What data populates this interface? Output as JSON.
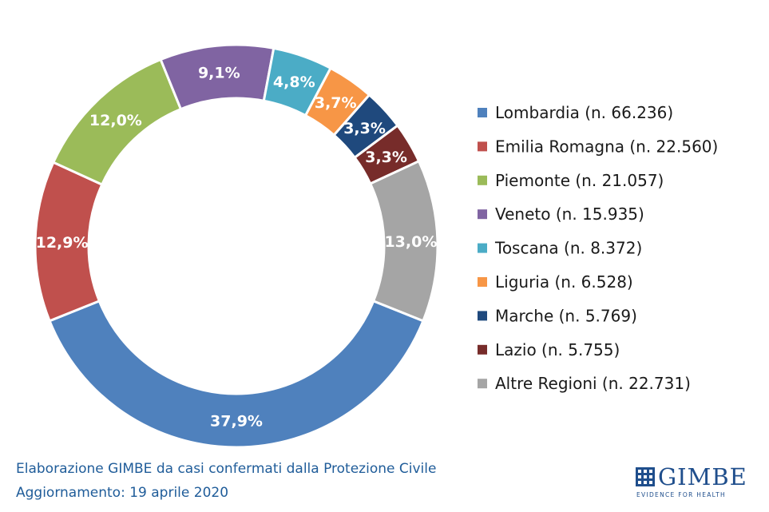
{
  "chart_data": {
    "type": "donut",
    "title": "",
    "slices": [
      {
        "label": "Lombardia (n. 66.236)",
        "value": 66236,
        "pct_label": "37,9%",
        "color": "#4f81bd"
      },
      {
        "label": "Emilia Romagna (n. 22.560)",
        "value": 22560,
        "pct_label": "12,9%",
        "color": "#c0504d"
      },
      {
        "label": "Piemonte (n. 21.057)",
        "value": 21057,
        "pct_label": "12,0%",
        "color": "#9bbb59"
      },
      {
        "label": "Veneto (n. 15.935)",
        "value": 15935,
        "pct_label": "9,1%",
        "color": "#8064a2"
      },
      {
        "label": "Toscana (n. 8.372)",
        "value": 8372,
        "pct_label": "4,8%",
        "color": "#4bacc6"
      },
      {
        "label": "Liguria (n. 6.528)",
        "value": 6528,
        "pct_label": "3,7%",
        "color": "#f79646"
      },
      {
        "label": "Marche (n. 5.769)",
        "value": 5769,
        "pct_label": "3,3%",
        "color": "#1f497d"
      },
      {
        "label": "Lazio (n. 5.755)",
        "value": 5755,
        "pct_label": "3,3%",
        "color": "#772c2a"
      },
      {
        "label": "Altre Regioni (n. 22.731)",
        "value": 22731,
        "pct_label": "13,0%",
        "color": "#a5a5a5"
      }
    ],
    "legend_position": "right"
  },
  "footer": {
    "line1": "Elaborazione GIMBE da casi confermati dalla Protezione Civile",
    "line2": "Aggiornamento: 19 aprile 2020"
  },
  "logo": {
    "name": "GIMBE",
    "tagline": "EVIDENCE FOR HEALTH",
    "color": "#1f4e8c"
  }
}
